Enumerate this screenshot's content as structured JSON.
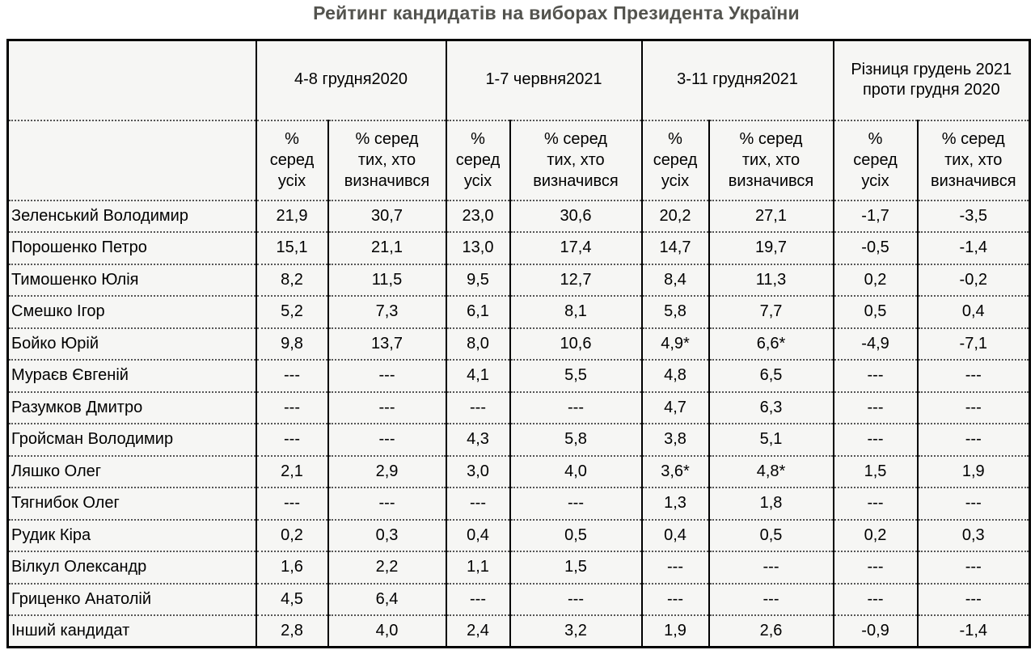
{
  "title": "Рейтинг кандидатів на виборах Президента України",
  "colors": {
    "title_text": "#53534e",
    "cell_background": "#f6f6f4",
    "border": "#000000",
    "body_text": "#000000"
  },
  "chart_data": {
    "type": "table",
    "title": "Рейтинг кандидатів на виборах Президента України",
    "column_groups": [
      {
        "label": "4-8 грудня2020"
      },
      {
        "label": "1-7 червня2021"
      },
      {
        "label": "3-11 грудня2021"
      },
      {
        "label": "Різниця грудень 2021 проти грудня 2020"
      }
    ],
    "sub_headers": [
      {
        "label": "%\nсеред\nусіх"
      },
      {
        "label": "% серед\nтих, хто\nвизначився"
      },
      {
        "label": "%\nсеред\nусіх"
      },
      {
        "label": "% серед\nтих, хто\nвизначився"
      },
      {
        "label": "%\nсеред\nусіх"
      },
      {
        "label": "% серед\nтих, хто\nвизначився"
      },
      {
        "label": "%\nсеред\nусіх"
      },
      {
        "label": "% серед\nтих, хто\nвизначився"
      }
    ],
    "no_data_marker": "---",
    "rows": [
      {
        "name": "Зеленський Володимир",
        "bold": false,
        "bold_values": [],
        "values": [
          "21,9",
          "30,7",
          "23,0",
          "30,6",
          "20,2",
          "27,1",
          "-1,7",
          "-3,5"
        ]
      },
      {
        "name": "Порошенко Петро",
        "bold": false,
        "bold_values": [],
        "values": [
          "15,1",
          "21,1",
          "13,0",
          "17,4",
          "14,7",
          "19,7",
          "-0,5",
          "-1,4"
        ]
      },
      {
        "name": "Тимошенко Юлія",
        "bold": false,
        "bold_values": [],
        "values": [
          "8,2",
          "11,5",
          "9,5",
          "12,7",
          "8,4",
          "11,3",
          "0,2",
          "-0,2"
        ]
      },
      {
        "name": "Смешко Ігор",
        "bold": false,
        "bold_values": [],
        "values": [
          "5,2",
          "7,3",
          "6,1",
          "8,1",
          "5,8",
          "7,7",
          "0,5",
          "0,4"
        ]
      },
      {
        "name": "Бойко Юрій",
        "bold": true,
        "bold_values": [
          4,
          5
        ],
        "values": [
          "9,8",
          "13,7",
          "8,0",
          "10,6",
          "4,9*",
          "6,6*",
          "-4,9",
          "-7,1"
        ]
      },
      {
        "name": "Мураєв Євгеній",
        "bold": false,
        "bold_values": [],
        "values": [
          "---",
          "---",
          "4,1",
          "5,5",
          "4,8",
          "6,5",
          "---",
          "---"
        ]
      },
      {
        "name": "Разумков Дмитро",
        "bold": false,
        "bold_values": [],
        "values": [
          "---",
          "---",
          "---",
          "---",
          "4,7",
          "6,3",
          "---",
          "---"
        ]
      },
      {
        "name": "Гройсман Володимир",
        "bold": false,
        "bold_values": [],
        "values": [
          "---",
          "---",
          "4,3",
          "5,8",
          "3,8",
          "5,1",
          "---",
          "---"
        ]
      },
      {
        "name": "Ляшко Олег",
        "bold": true,
        "bold_values": [
          4,
          5
        ],
        "values": [
          "2,1",
          "2,9",
          "3,0",
          "4,0",
          "3,6*",
          "4,8*",
          "1,5",
          "1,9"
        ]
      },
      {
        "name": "Тягнибок Олег",
        "bold": false,
        "bold_values": [],
        "values": [
          "---",
          "---",
          "---",
          "---",
          "1,3",
          "1,8",
          "---",
          "---"
        ]
      },
      {
        "name": "Рудик Кіра",
        "bold": false,
        "bold_values": [],
        "values": [
          "0,2",
          "0,3",
          "0,4",
          "0,5",
          "0,4",
          "0,5",
          "0,2",
          "0,3"
        ]
      },
      {
        "name": "Вілкул Олександр",
        "bold": false,
        "bold_values": [],
        "values": [
          "1,6",
          "2,2",
          "1,1",
          "1,5",
          "---",
          "---",
          "---",
          "---"
        ]
      },
      {
        "name": "Гриценко Анатолій",
        "bold": false,
        "bold_values": [],
        "values": [
          "4,5",
          "6,4",
          "---",
          "---",
          "---",
          "---",
          "---",
          "---"
        ]
      },
      {
        "name": "Інший кандидат",
        "bold": false,
        "bold_values": [],
        "values": [
          "2,8",
          "4,0",
          "2,4",
          "3,2",
          "1,9",
          "2,6",
          "-0,9",
          "-1,4"
        ]
      }
    ]
  }
}
